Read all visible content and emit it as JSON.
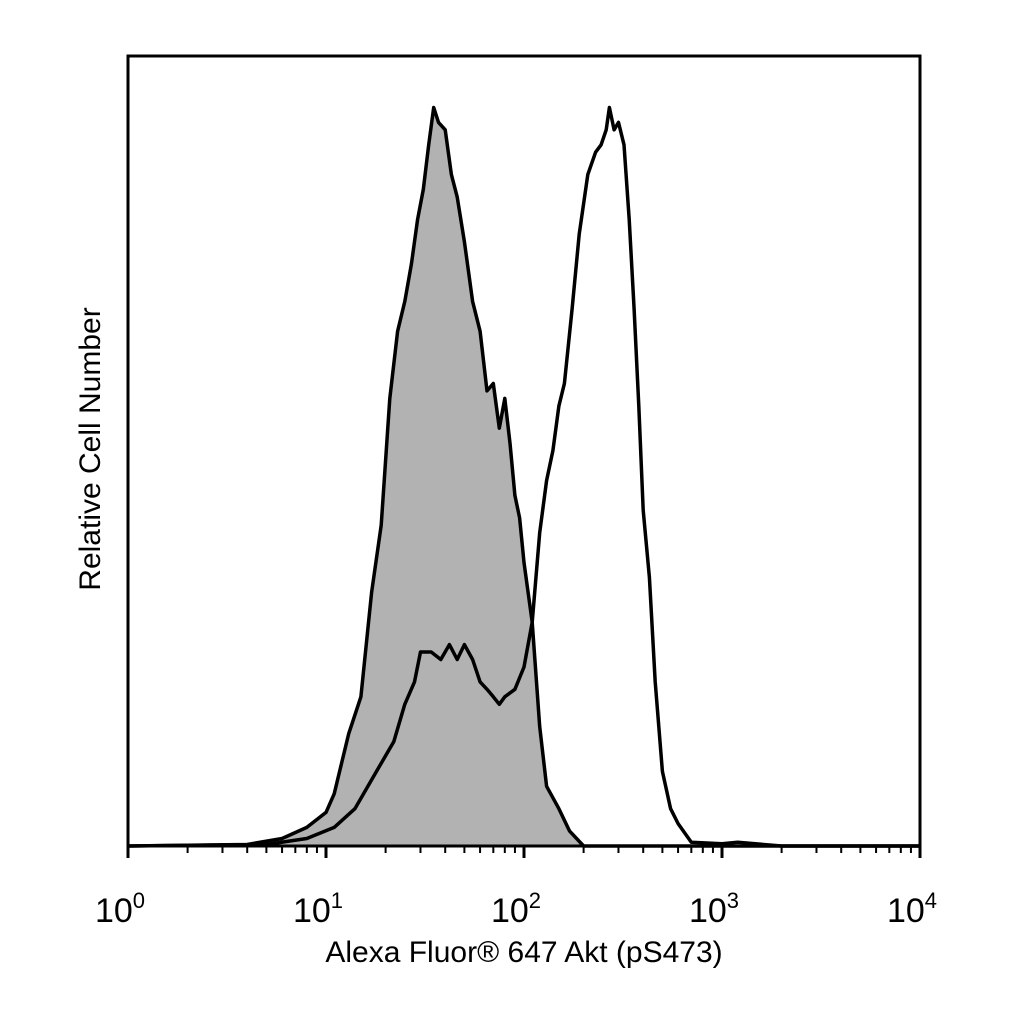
{
  "chart_data": {
    "type": "area",
    "xlabel": "Alexa Fluor® 647 Akt (pS473)",
    "ylabel": "Relative Cell Number",
    "xscale": "log",
    "xlim": [
      1,
      10000
    ],
    "ylim": [
      0,
      1.0
    ],
    "grid": false,
    "x_ticks": [
      {
        "base": "10",
        "exp": "0",
        "value": 1
      },
      {
        "base": "10",
        "exp": "1",
        "value": 10
      },
      {
        "base": "10",
        "exp": "2",
        "value": 100
      },
      {
        "base": "10",
        "exp": "3",
        "value": 1000
      },
      {
        "base": "10",
        "exp": "4",
        "value": 10000
      }
    ],
    "series": [
      {
        "style": "filled",
        "fill": "#b2b2b2",
        "stroke": "#000000",
        "x": [
          1,
          4,
          6,
          8,
          10,
          11,
          13,
          15,
          17,
          19,
          21,
          23,
          25,
          27,
          29,
          31,
          33,
          35,
          37,
          40,
          43,
          46,
          50,
          55,
          60,
          65,
          70,
          75,
          80,
          85,
          90,
          95,
          100,
          110,
          120,
          130,
          150,
          170,
          200,
          1000,
          10000
        ],
        "y": [
          0.0,
          0.002,
          0.01,
          0.025,
          0.045,
          0.07,
          0.15,
          0.2,
          0.34,
          0.43,
          0.6,
          0.69,
          0.73,
          0.78,
          0.84,
          0.88,
          0.94,
          0.99,
          0.97,
          0.96,
          0.9,
          0.87,
          0.81,
          0.73,
          0.69,
          0.61,
          0.62,
          0.56,
          0.6,
          0.54,
          0.47,
          0.44,
          0.38,
          0.3,
          0.16,
          0.08,
          0.05,
          0.02,
          0.0,
          0.0,
          0.0
        ]
      },
      {
        "style": "outline",
        "fill": "none",
        "stroke": "#000000",
        "x": [
          1,
          5,
          8,
          11,
          14,
          18,
          22,
          25,
          28,
          30,
          34,
          38,
          42,
          46,
          50,
          55,
          60,
          65,
          70,
          75,
          80,
          90,
          100,
          110,
          120,
          130,
          140,
          150,
          160,
          175,
          190,
          210,
          230,
          245,
          260,
          270,
          285,
          300,
          320,
          340,
          360,
          380,
          400,
          430,
          460,
          500,
          550,
          600,
          700,
          1000,
          1200,
          2000,
          10000
        ],
        "y": [
          0.0,
          0.002,
          0.01,
          0.025,
          0.05,
          0.1,
          0.14,
          0.19,
          0.22,
          0.26,
          0.26,
          0.25,
          0.27,
          0.25,
          0.27,
          0.25,
          0.22,
          0.21,
          0.2,
          0.19,
          0.2,
          0.21,
          0.24,
          0.3,
          0.42,
          0.49,
          0.53,
          0.59,
          0.62,
          0.72,
          0.82,
          0.9,
          0.93,
          0.94,
          0.96,
          0.99,
          0.96,
          0.97,
          0.94,
          0.84,
          0.72,
          0.59,
          0.45,
          0.36,
          0.22,
          0.1,
          0.05,
          0.03,
          0.005,
          0.003,
          0.005,
          0.0,
          0.0
        ]
      }
    ]
  }
}
